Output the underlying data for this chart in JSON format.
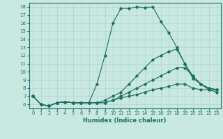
{
  "xlabel": "Humidex (Indice chaleur)",
  "bg_color": "#c8e8e0",
  "grid_color": "#afd4cc",
  "line_color": "#1a6e65",
  "xlim": [
    -0.5,
    23.5
  ],
  "ylim": [
    5.5,
    18.5
  ],
  "yticks": [
    6,
    7,
    8,
    9,
    10,
    11,
    12,
    13,
    14,
    15,
    16,
    17,
    18
  ],
  "xticks": [
    0,
    1,
    2,
    3,
    4,
    5,
    6,
    7,
    8,
    9,
    10,
    11,
    12,
    13,
    14,
    15,
    16,
    17,
    18,
    19,
    20,
    21,
    22,
    23
  ],
  "lines": [
    {
      "x": [
        0,
        1,
        2,
        3,
        4,
        5,
        6,
        7,
        8,
        9,
        10,
        11,
        12,
        13,
        14,
        15,
        16,
        17,
        18,
        19,
        20,
        21,
        22,
        23
      ],
      "y": [
        7.0,
        6.0,
        5.8,
        6.2,
        6.3,
        6.2,
        6.2,
        6.2,
        8.5,
        12.0,
        16.0,
        17.8,
        17.8,
        18.0,
        17.9,
        18.0,
        16.2,
        14.8,
        13.0,
        11.0,
        9.2,
        8.5,
        8.0,
        7.8
      ]
    },
    {
      "x": [
        0,
        1,
        2,
        3,
        4,
        5,
        6,
        7,
        8,
        9,
        10,
        11,
        12,
        13,
        14,
        15,
        16,
        17,
        18,
        19,
        20,
        21,
        22,
        23
      ],
      "y": [
        7.0,
        6.0,
        5.8,
        6.2,
        6.3,
        6.2,
        6.2,
        6.2,
        6.2,
        6.5,
        7.0,
        7.5,
        8.5,
        9.5,
        10.5,
        11.5,
        12.0,
        12.5,
        12.8,
        11.0,
        9.5,
        8.5,
        7.8,
        7.5
      ]
    },
    {
      "x": [
        0,
        1,
        2,
        3,
        4,
        5,
        6,
        7,
        8,
        9,
        10,
        11,
        12,
        13,
        14,
        15,
        16,
        17,
        18,
        19,
        20,
        21,
        22,
        23
      ],
      "y": [
        7.0,
        6.0,
        5.8,
        6.2,
        6.3,
        6.2,
        6.2,
        6.2,
        6.2,
        6.2,
        6.5,
        7.0,
        7.5,
        8.0,
        8.5,
        9.0,
        9.5,
        10.0,
        10.5,
        10.5,
        9.5,
        8.5,
        8.0,
        7.8
      ]
    },
    {
      "x": [
        0,
        1,
        2,
        3,
        4,
        5,
        6,
        7,
        8,
        9,
        10,
        11,
        12,
        13,
        14,
        15,
        16,
        17,
        18,
        19,
        20,
        21,
        22,
        23
      ],
      "y": [
        7.0,
        6.0,
        5.8,
        6.2,
        6.3,
        6.2,
        6.2,
        6.2,
        6.2,
        6.2,
        6.5,
        6.8,
        7.0,
        7.2,
        7.5,
        7.8,
        8.0,
        8.2,
        8.5,
        8.5,
        8.0,
        7.8,
        7.8,
        7.8
      ]
    }
  ]
}
